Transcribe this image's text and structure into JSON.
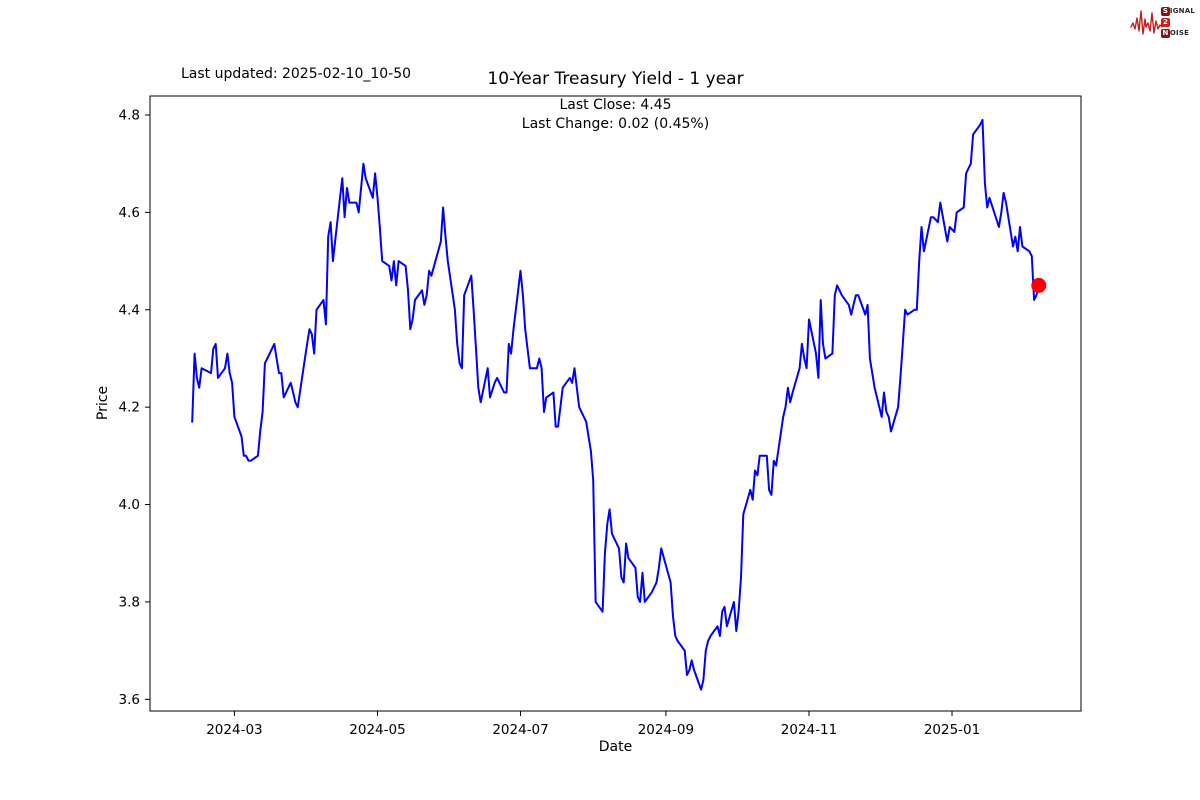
{
  "header": {
    "last_updated": "Last updated: 2025-02-10_10-50"
  },
  "logo": {
    "rows": [
      {
        "badge": "S",
        "rest": "IGNAL"
      },
      {
        "badge": "2",
        "rest": ""
      },
      {
        "badge": "N",
        "rest": "OISE"
      }
    ],
    "waveform_color": "#c41e1e"
  },
  "chart_data": {
    "type": "line",
    "title": "10-Year Treasury Yield - 1 year",
    "annotations": [
      "Last Close: 4.45",
      "Last Change: 0.02 (0.45%)"
    ],
    "last_close": "4.45",
    "last_change": "0.02 (0.45%)",
    "xlabel": "Date",
    "ylabel": "Price",
    "grid": false,
    "legend": "none",
    "line_color": "#0000ff",
    "marker_color": "#ff0000",
    "xlim": [
      "2024-01-25",
      "2025-02-25"
    ],
    "ylim": [
      3.576,
      4.839
    ],
    "x_ticks": [
      {
        "label": "2024-03",
        "date": "2024-03-01"
      },
      {
        "label": "2024-05",
        "date": "2024-05-01"
      },
      {
        "label": "2024-07",
        "date": "2024-07-01"
      },
      {
        "label": "2024-09",
        "date": "2024-09-01"
      },
      {
        "label": "2024-11",
        "date": "2024-11-01"
      },
      {
        "label": "2025-01",
        "date": "2025-01-01"
      }
    ],
    "y_ticks": [
      "3.6",
      "3.8",
      "4.0",
      "4.2",
      "4.4",
      "4.6",
      "4.8"
    ],
    "series": [
      {
        "name": "10-Year Treasury Yield",
        "points": [
          [
            "2024-02-12",
            4.17
          ],
          [
            "2024-02-13",
            4.31
          ],
          [
            "2024-02-14",
            4.26
          ],
          [
            "2024-02-15",
            4.24
          ],
          [
            "2024-02-16",
            4.28
          ],
          [
            "2024-02-20",
            4.27
          ],
          [
            "2024-02-21",
            4.32
          ],
          [
            "2024-02-22",
            4.33
          ],
          [
            "2024-02-23",
            4.26
          ],
          [
            "2024-02-26",
            4.28
          ],
          [
            "2024-02-27",
            4.31
          ],
          [
            "2024-02-28",
            4.27
          ],
          [
            "2024-02-29",
            4.25
          ],
          [
            "2024-03-01",
            4.18
          ],
          [
            "2024-03-04",
            4.14
          ],
          [
            "2024-03-05",
            4.1
          ],
          [
            "2024-03-06",
            4.1
          ],
          [
            "2024-03-07",
            4.09
          ],
          [
            "2024-03-08",
            4.09
          ],
          [
            "2024-03-11",
            4.1
          ],
          [
            "2024-03-12",
            4.15
          ],
          [
            "2024-03-13",
            4.19
          ],
          [
            "2024-03-14",
            4.29
          ],
          [
            "2024-03-15",
            4.3
          ],
          [
            "2024-03-18",
            4.33
          ],
          [
            "2024-03-19",
            4.3
          ],
          [
            "2024-03-20",
            4.27
          ],
          [
            "2024-03-21",
            4.27
          ],
          [
            "2024-03-22",
            4.22
          ],
          [
            "2024-03-25",
            4.25
          ],
          [
            "2024-03-26",
            4.23
          ],
          [
            "2024-03-27",
            4.21
          ],
          [
            "2024-03-28",
            4.2
          ],
          [
            "2024-04-01",
            4.33
          ],
          [
            "2024-04-02",
            4.36
          ],
          [
            "2024-04-03",
            4.35
          ],
          [
            "2024-04-04",
            4.31
          ],
          [
            "2024-04-05",
            4.4
          ],
          [
            "2024-04-08",
            4.42
          ],
          [
            "2024-04-09",
            4.37
          ],
          [
            "2024-04-10",
            4.55
          ],
          [
            "2024-04-11",
            4.58
          ],
          [
            "2024-04-12",
            4.5
          ],
          [
            "2024-04-15",
            4.63
          ],
          [
            "2024-04-16",
            4.67
          ],
          [
            "2024-04-17",
            4.59
          ],
          [
            "2024-04-18",
            4.65
          ],
          [
            "2024-04-19",
            4.62
          ],
          [
            "2024-04-22",
            4.62
          ],
          [
            "2024-04-23",
            4.6
          ],
          [
            "2024-04-24",
            4.65
          ],
          [
            "2024-04-25",
            4.7
          ],
          [
            "2024-04-26",
            4.67
          ],
          [
            "2024-04-29",
            4.63
          ],
          [
            "2024-04-30",
            4.68
          ],
          [
            "2024-05-01",
            4.63
          ],
          [
            "2024-05-02",
            4.57
          ],
          [
            "2024-05-03",
            4.5
          ],
          [
            "2024-05-06",
            4.49
          ],
          [
            "2024-05-07",
            4.46
          ],
          [
            "2024-05-08",
            4.5
          ],
          [
            "2024-05-09",
            4.45
          ],
          [
            "2024-05-10",
            4.5
          ],
          [
            "2024-05-13",
            4.49
          ],
          [
            "2024-05-14",
            4.44
          ],
          [
            "2024-05-15",
            4.36
          ],
          [
            "2024-05-16",
            4.38
          ],
          [
            "2024-05-17",
            4.42
          ],
          [
            "2024-05-20",
            4.44
          ],
          [
            "2024-05-21",
            4.41
          ],
          [
            "2024-05-22",
            4.43
          ],
          [
            "2024-05-23",
            4.48
          ],
          [
            "2024-05-24",
            4.47
          ],
          [
            "2024-05-28",
            4.54
          ],
          [
            "2024-05-29",
            4.61
          ],
          [
            "2024-05-30",
            4.55
          ],
          [
            "2024-05-31",
            4.5
          ],
          [
            "2024-06-03",
            4.4
          ],
          [
            "2024-06-04",
            4.33
          ],
          [
            "2024-06-05",
            4.29
          ],
          [
            "2024-06-06",
            4.28
          ],
          [
            "2024-06-07",
            4.43
          ],
          [
            "2024-06-10",
            4.47
          ],
          [
            "2024-06-11",
            4.4
          ],
          [
            "2024-06-12",
            4.32
          ],
          [
            "2024-06-13",
            4.24
          ],
          [
            "2024-06-14",
            4.21
          ],
          [
            "2024-06-17",
            4.28
          ],
          [
            "2024-06-18",
            4.22
          ],
          [
            "2024-06-20",
            4.25
          ],
          [
            "2024-06-21",
            4.26
          ],
          [
            "2024-06-24",
            4.23
          ],
          [
            "2024-06-25",
            4.23
          ],
          [
            "2024-06-26",
            4.33
          ],
          [
            "2024-06-27",
            4.31
          ],
          [
            "2024-06-28",
            4.36
          ],
          [
            "2024-07-01",
            4.48
          ],
          [
            "2024-07-02",
            4.43
          ],
          [
            "2024-07-03",
            4.36
          ],
          [
            "2024-07-05",
            4.28
          ],
          [
            "2024-07-08",
            4.28
          ],
          [
            "2024-07-09",
            4.3
          ],
          [
            "2024-07-10",
            4.28
          ],
          [
            "2024-07-11",
            4.19
          ],
          [
            "2024-07-12",
            4.22
          ],
          [
            "2024-07-15",
            4.23
          ],
          [
            "2024-07-16",
            4.16
          ],
          [
            "2024-07-17",
            4.16
          ],
          [
            "2024-07-18",
            4.2
          ],
          [
            "2024-07-19",
            4.24
          ],
          [
            "2024-07-22",
            4.26
          ],
          [
            "2024-07-23",
            4.25
          ],
          [
            "2024-07-24",
            4.28
          ],
          [
            "2024-07-25",
            4.24
          ],
          [
            "2024-07-26",
            4.2
          ],
          [
            "2024-07-29",
            4.17
          ],
          [
            "2024-07-30",
            4.14
          ],
          [
            "2024-07-31",
            4.11
          ],
          [
            "2024-08-01",
            4.05
          ],
          [
            "2024-08-02",
            3.8
          ],
          [
            "2024-08-05",
            3.78
          ],
          [
            "2024-08-06",
            3.9
          ],
          [
            "2024-08-07",
            3.96
          ],
          [
            "2024-08-08",
            3.99
          ],
          [
            "2024-08-09",
            3.94
          ],
          [
            "2024-08-12",
            3.91
          ],
          [
            "2024-08-13",
            3.85
          ],
          [
            "2024-08-14",
            3.84
          ],
          [
            "2024-08-15",
            3.92
          ],
          [
            "2024-08-16",
            3.89
          ],
          [
            "2024-08-19",
            3.87
          ],
          [
            "2024-08-20",
            3.81
          ],
          [
            "2024-08-21",
            3.8
          ],
          [
            "2024-08-22",
            3.86
          ],
          [
            "2024-08-23",
            3.8
          ],
          [
            "2024-08-26",
            3.82
          ],
          [
            "2024-08-27",
            3.83
          ],
          [
            "2024-08-28",
            3.84
          ],
          [
            "2024-08-29",
            3.87
          ],
          [
            "2024-08-30",
            3.91
          ],
          [
            "2024-09-03",
            3.84
          ],
          [
            "2024-09-04",
            3.77
          ],
          [
            "2024-09-05",
            3.73
          ],
          [
            "2024-09-06",
            3.72
          ],
          [
            "2024-09-09",
            3.7
          ],
          [
            "2024-09-10",
            3.65
          ],
          [
            "2024-09-11",
            3.66
          ],
          [
            "2024-09-12",
            3.68
          ],
          [
            "2024-09-13",
            3.66
          ],
          [
            "2024-09-16",
            3.62
          ],
          [
            "2024-09-17",
            3.64
          ],
          [
            "2024-09-18",
            3.7
          ],
          [
            "2024-09-19",
            3.72
          ],
          [
            "2024-09-20",
            3.73
          ],
          [
            "2024-09-23",
            3.75
          ],
          [
            "2024-09-24",
            3.73
          ],
          [
            "2024-09-25",
            3.78
          ],
          [
            "2024-09-26",
            3.79
          ],
          [
            "2024-09-27",
            3.75
          ],
          [
            "2024-09-30",
            3.8
          ],
          [
            "2024-10-01",
            3.74
          ],
          [
            "2024-10-02",
            3.78
          ],
          [
            "2024-10-03",
            3.85
          ],
          [
            "2024-10-04",
            3.98
          ],
          [
            "2024-10-07",
            4.03
          ],
          [
            "2024-10-08",
            4.01
          ],
          [
            "2024-10-09",
            4.07
          ],
          [
            "2024-10-10",
            4.06
          ],
          [
            "2024-10-11",
            4.1
          ],
          [
            "2024-10-14",
            4.1
          ],
          [
            "2024-10-15",
            4.03
          ],
          [
            "2024-10-16",
            4.02
          ],
          [
            "2024-10-17",
            4.09
          ],
          [
            "2024-10-18",
            4.08
          ],
          [
            "2024-10-21",
            4.18
          ],
          [
            "2024-10-22",
            4.2
          ],
          [
            "2024-10-23",
            4.24
          ],
          [
            "2024-10-24",
            4.21
          ],
          [
            "2024-10-25",
            4.23
          ],
          [
            "2024-10-28",
            4.28
          ],
          [
            "2024-10-29",
            4.33
          ],
          [
            "2024-10-30",
            4.3
          ],
          [
            "2024-10-31",
            4.28
          ],
          [
            "2024-11-01",
            4.38
          ],
          [
            "2024-11-04",
            4.31
          ],
          [
            "2024-11-05",
            4.26
          ],
          [
            "2024-11-06",
            4.42
          ],
          [
            "2024-11-07",
            4.33
          ],
          [
            "2024-11-08",
            4.3
          ],
          [
            "2024-11-11",
            4.31
          ],
          [
            "2024-11-12",
            4.43
          ],
          [
            "2024-11-13",
            4.45
          ],
          [
            "2024-11-14",
            4.44
          ],
          [
            "2024-11-15",
            4.43
          ],
          [
            "2024-11-18",
            4.41
          ],
          [
            "2024-11-19",
            4.39
          ],
          [
            "2024-11-20",
            4.41
          ],
          [
            "2024-11-21",
            4.43
          ],
          [
            "2024-11-22",
            4.43
          ],
          [
            "2024-11-25",
            4.39
          ],
          [
            "2024-11-26",
            4.41
          ],
          [
            "2024-11-27",
            4.3
          ],
          [
            "2024-11-29",
            4.24
          ],
          [
            "2024-12-02",
            4.18
          ],
          [
            "2024-12-03",
            4.23
          ],
          [
            "2024-12-04",
            4.19
          ],
          [
            "2024-12-05",
            4.18
          ],
          [
            "2024-12-06",
            4.15
          ],
          [
            "2024-12-09",
            4.2
          ],
          [
            "2024-12-10",
            4.26
          ],
          [
            "2024-12-11",
            4.33
          ],
          [
            "2024-12-12",
            4.4
          ],
          [
            "2024-12-13",
            4.39
          ],
          [
            "2024-12-16",
            4.4
          ],
          [
            "2024-12-17",
            4.4
          ],
          [
            "2024-12-18",
            4.5
          ],
          [
            "2024-12-19",
            4.57
          ],
          [
            "2024-12-20",
            4.52
          ],
          [
            "2024-12-23",
            4.59
          ],
          [
            "2024-12-24",
            4.59
          ],
          [
            "2024-12-26",
            4.58
          ],
          [
            "2024-12-27",
            4.62
          ],
          [
            "2024-12-30",
            4.54
          ],
          [
            "2024-12-31",
            4.57
          ],
          [
            "2025-01-02",
            4.56
          ],
          [
            "2025-01-03",
            4.6
          ],
          [
            "2025-01-06",
            4.61
          ],
          [
            "2025-01-07",
            4.68
          ],
          [
            "2025-01-08",
            4.69
          ],
          [
            "2025-01-09",
            4.7
          ],
          [
            "2025-01-10",
            4.76
          ],
          [
            "2025-01-13",
            4.78
          ],
          [
            "2025-01-14",
            4.79
          ],
          [
            "2025-01-15",
            4.66
          ],
          [
            "2025-01-16",
            4.61
          ],
          [
            "2025-01-17",
            4.63
          ],
          [
            "2025-01-21",
            4.57
          ],
          [
            "2025-01-22",
            4.6
          ],
          [
            "2025-01-23",
            4.64
          ],
          [
            "2025-01-24",
            4.62
          ],
          [
            "2025-01-27",
            4.53
          ],
          [
            "2025-01-28",
            4.55
          ],
          [
            "2025-01-29",
            4.52
          ],
          [
            "2025-01-30",
            4.57
          ],
          [
            "2025-01-31",
            4.53
          ],
          [
            "2025-02-03",
            4.52
          ],
          [
            "2025-02-04",
            4.51
          ],
          [
            "2025-02-05",
            4.42
          ],
          [
            "2025-02-06",
            4.43
          ],
          [
            "2025-02-07",
            4.45
          ]
        ]
      }
    ]
  }
}
